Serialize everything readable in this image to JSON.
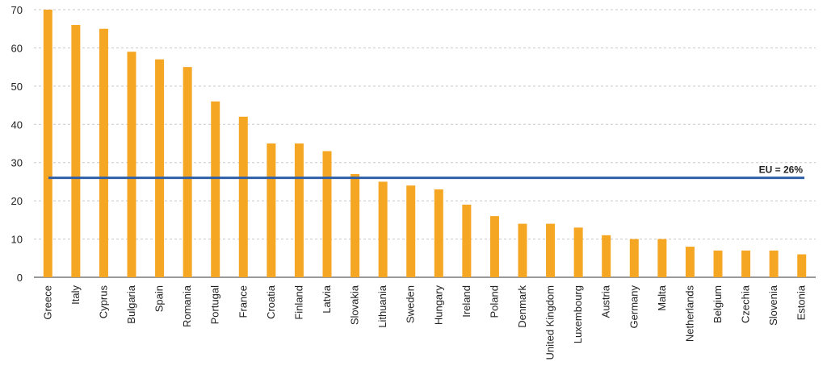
{
  "chart_data": {
    "type": "bar",
    "categories": [
      "Greece",
      "Italy",
      "Cyprus",
      "Bulgaria",
      "Spain",
      "Romania",
      "Portugal",
      "France",
      "Croatia",
      "Finland",
      "Latvia",
      "Slovakia",
      "Lithuania",
      "Sweden",
      "Hungary",
      "Ireland",
      "Poland",
      "Denmark",
      "United Kingdom",
      "Luxembourg",
      "Austria",
      "Germany",
      "Malta",
      "Netherlands",
      "Belgium",
      "Czechia",
      "Slovenia",
      "Estonia"
    ],
    "values": [
      70,
      66,
      65,
      59,
      57,
      55,
      46,
      42,
      35,
      35,
      33,
      27,
      25,
      24,
      23,
      19,
      16,
      14,
      14,
      13,
      11,
      10,
      10,
      8,
      7,
      7,
      7,
      6
    ],
    "ylim": [
      0,
      70
    ],
    "yticks": [
      0,
      10,
      20,
      30,
      40,
      50,
      60,
      70
    ],
    "grid": true,
    "bar_color": "#F5A623",
    "reference_line": {
      "value": 26,
      "label": "EU = 26%",
      "color": "#2F5FA8"
    }
  }
}
